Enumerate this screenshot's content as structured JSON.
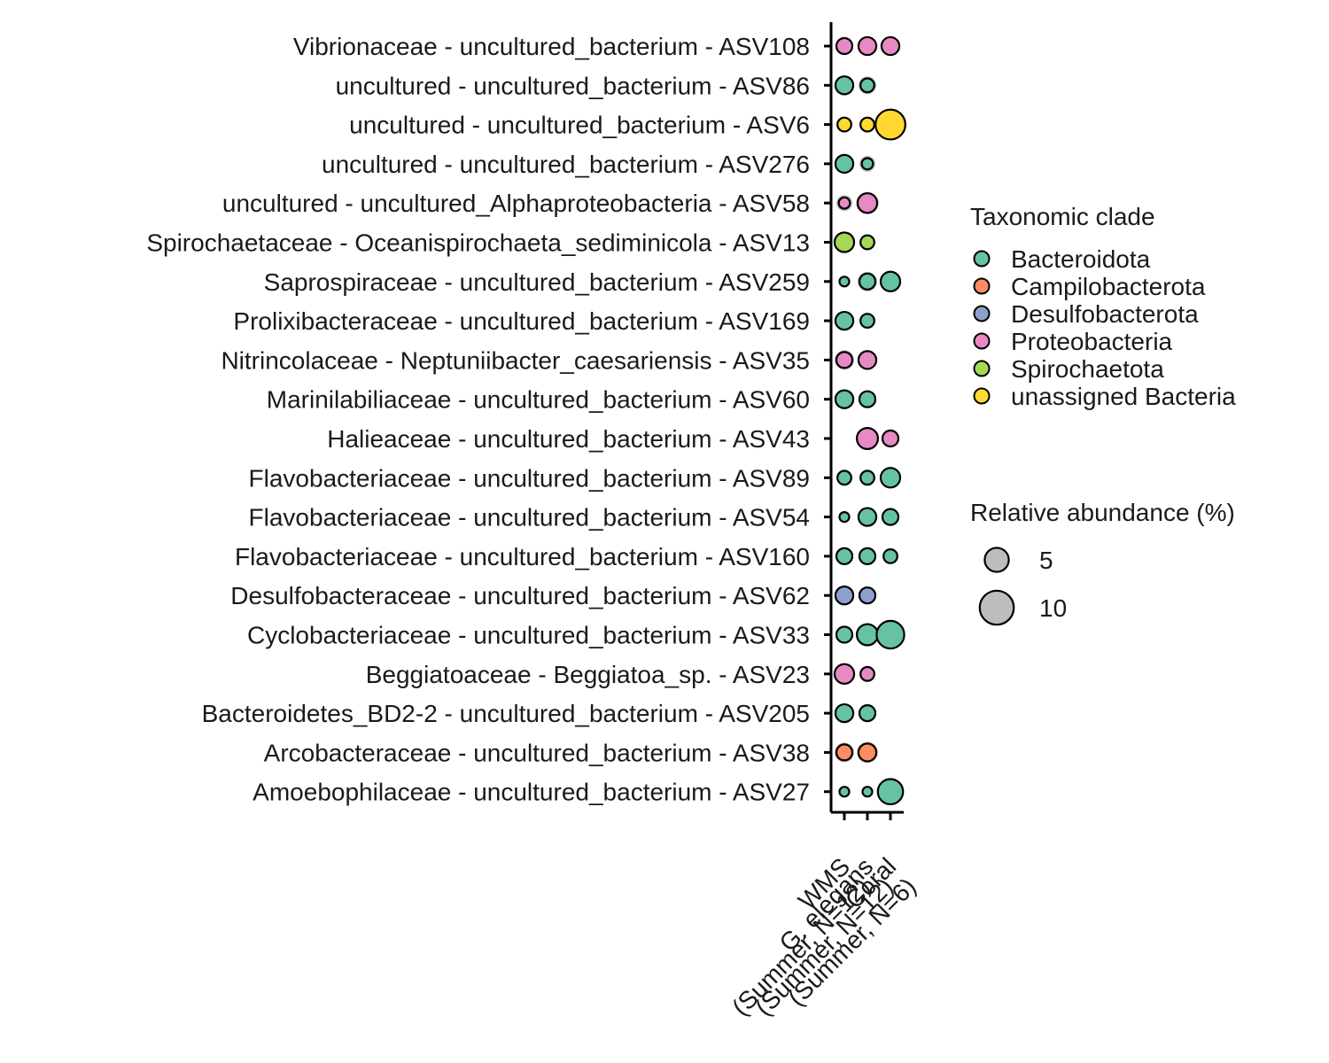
{
  "chart_data": {
    "type": "bubble",
    "categories": [
      "Vibrionaceae - uncultured_bacterium - ASV108",
      "uncultured - uncultured_bacterium - ASV86",
      "uncultured - uncultured_bacterium - ASV6",
      "uncultured - uncultured_bacterium - ASV276",
      "uncultured - uncultured_Alphaproteobacteria - ASV58",
      "Spirochaetaceae - Oceanispirochaeta_sediminicola - ASV13",
      "Saprospiraceae - uncultured_bacterium - ASV259",
      "Prolixibacteraceae - uncultured_bacterium - ASV169",
      "Nitrincolaceae - Neptuniibacter_caesariensis - ASV35",
      "Marinilabiliaceae - uncultured_bacterium - ASV60",
      "Halieaceae - uncultured_bacterium - ASV43",
      "Flavobacteriaceae - uncultured_bacterium - ASV89",
      "Flavobacteriaceae - uncultured_bacterium - ASV54",
      "Flavobacteriaceae - uncultured_bacterium - ASV160",
      "Desulfobacteraceae - uncultured_bacterium - ASV62",
      "Cyclobacteriaceae - uncultured_bacterium - ASV33",
      "Beggiatoaceae - Beggiatoa_sp. - ASV23",
      "Bacteroidetes_BD2-2 - uncultured_bacterium - ASV205",
      "Arcobacteraceae - uncultured_bacterium - ASV38",
      "Amoebophilaceae - uncultured_bacterium - ASV27"
    ],
    "clades": [
      "Proteobacteria",
      "Bacteroidota",
      "unassigned Bacteria",
      "Bacteroidota",
      "Proteobacteria",
      "Spirochaetota",
      "Bacteroidota",
      "Bacteroidota",
      "Proteobacteria",
      "Bacteroidota",
      "Proteobacteria",
      "Bacteroidota",
      "Bacteroidota",
      "Bacteroidota",
      "Desulfobacterota",
      "Bacteroidota",
      "Proteobacteria",
      "Bacteroidota",
      "Campilobacterota",
      "Bacteroidota"
    ],
    "groups": [
      {
        "name": "WMS",
        "label_line1": "WMS",
        "label_line2": "(Summer, N=12)"
      },
      {
        "name": "G. elegans",
        "label_line1": "G. elegans",
        "label_line2": "(Summer, N=12)"
      },
      {
        "name": "Coral",
        "label_line1": "Coral",
        "label_line2": "(Summer, N=6)"
      }
    ],
    "values": [
      [
        4,
        5,
        5
      ],
      [
        5,
        3,
        0
      ],
      [
        3,
        3,
        14
      ],
      [
        5,
        2,
        0
      ],
      [
        2,
        6,
        0
      ],
      [
        6,
        3,
        0
      ],
      [
        1.5,
        4,
        6
      ],
      [
        5,
        3,
        0
      ],
      [
        4,
        5,
        0
      ],
      [
        5,
        4,
        0
      ],
      [
        0,
        7,
        4
      ],
      [
        3,
        3,
        6
      ],
      [
        1.5,
        5,
        4
      ],
      [
        4,
        4,
        3
      ],
      [
        5,
        4,
        0
      ],
      [
        4,
        7,
        12
      ],
      [
        6,
        3,
        0
      ],
      [
        5,
        4,
        0
      ],
      [
        4,
        5,
        0
      ],
      [
        1.5,
        1.5,
        10
      ]
    ],
    "shadow_values": [
      [
        5,
        5,
        5
      ],
      [
        6,
        5,
        0
      ],
      [
        4,
        4,
        14
      ],
      [
        6,
        4,
        0
      ],
      [
        4,
        8,
        0
      ],
      [
        7,
        4,
        0
      ],
      [
        1.5,
        6,
        7
      ],
      [
        6,
        4,
        0
      ],
      [
        6,
        6,
        0
      ],
      [
        6,
        4,
        0
      ],
      [
        0,
        8,
        4
      ],
      [
        4,
        4,
        7
      ],
      [
        1.5,
        6,
        5
      ],
      [
        5,
        5,
        4
      ],
      [
        6,
        5,
        0
      ],
      [
        5,
        8,
        12
      ],
      [
        7,
        4,
        0
      ],
      [
        6,
        5,
        0
      ],
      [
        6,
        7,
        0
      ],
      [
        1.5,
        1.5,
        10
      ]
    ],
    "legend_clade": {
      "title": "Taxonomic clade",
      "items": [
        {
          "label": "Bacteroidota",
          "color": "#66c2a5"
        },
        {
          "label": "Campilobacterota",
          "color": "#fc8d62"
        },
        {
          "label": "Desulfobacterota",
          "color": "#8da0cb"
        },
        {
          "label": "Proteobacteria",
          "color": "#e78ac3"
        },
        {
          "label": "Spirochaetota",
          "color": "#a6d854"
        },
        {
          "label": "unassigned Bacteria",
          "color": "#ffd92f"
        }
      ]
    },
    "legend_size": {
      "title": "Relative abundance (%)",
      "items": [
        {
          "label": "5",
          "value": 5
        },
        {
          "label": "10",
          "value": 10
        }
      ]
    },
    "legend_placement": "right",
    "shadow_color": "#bdbdbd"
  }
}
